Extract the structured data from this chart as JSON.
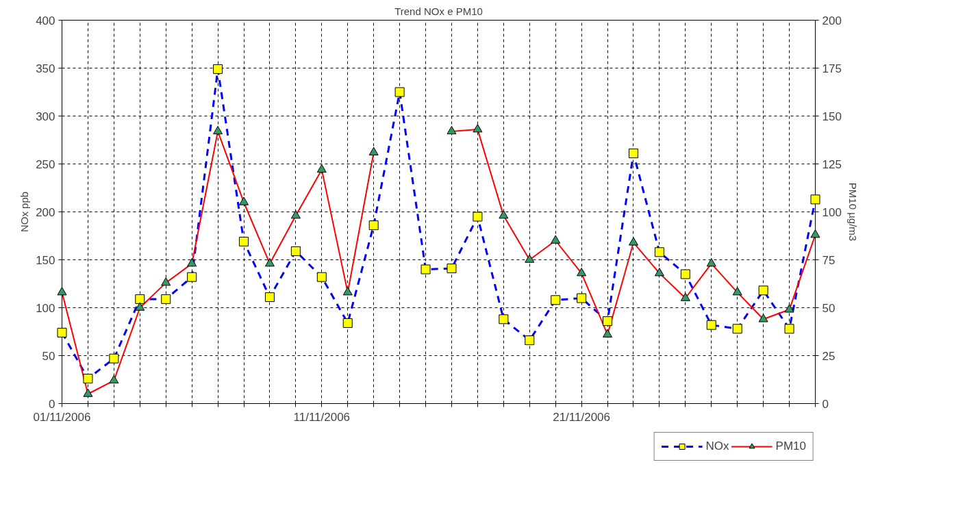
{
  "chart_data": {
    "type": "line",
    "title": "Trend NOx e PM10",
    "ylabel": "NOx ppb",
    "y2label": "PM10 µg/m3",
    "x": [
      "2006-11-01",
      "2006-11-02",
      "2006-11-03",
      "2006-11-04",
      "2006-11-05",
      "2006-11-06",
      "2006-11-07",
      "2006-11-08",
      "2006-11-09",
      "2006-11-10",
      "2006-11-11",
      "2006-11-12",
      "2006-11-13",
      "2006-11-14",
      "2006-11-15",
      "2006-11-16",
      "2006-11-17",
      "2006-11-18",
      "2006-11-19",
      "2006-11-20",
      "2006-11-21",
      "2006-11-22",
      "2006-11-23",
      "2006-11-24",
      "2006-11-25",
      "2006-11-26",
      "2006-11-27",
      "2006-11-28",
      "2006-11-29",
      "2006-11-30"
    ],
    "series": [
      {
        "name": "NOx",
        "color": "#0000ff",
        "colors": [
          "#ffff00",
          "#ffff00",
          "#ffff00",
          "#ffff00",
          "#ffff00",
          "#ffff00",
          "#ffff00",
          "#ffff00",
          "#ffff00",
          "#ffff00",
          "#ffff00",
          "#ffff00",
          "#ffff00",
          "#ffff00",
          "#ffff00",
          "#ffff00",
          "#ffff00",
          "#ffff00",
          "#ffff00",
          "#ffff00",
          "#ffff00",
          "#ffff00",
          "#ffff00",
          "#ffff00",
          "#ffff00",
          "#ffff00",
          "#ffff00",
          "#ffff00",
          "#ffff00",
          "#ffff00"
        ],
        "marker": "square",
        "line_style": "dashed",
        "values": [
          74,
          26,
          47,
          109,
          109,
          132,
          349,
          169,
          111,
          159,
          132,
          84,
          186,
          325,
          140,
          141,
          195,
          88,
          66,
          108,
          110,
          86,
          261,
          158,
          135,
          82,
          78,
          118,
          78,
          213
        ]
      },
      {
        "name": "PM10",
        "color": "#ff0000",
        "colors": [
          "#339966",
          "#339966",
          "#339966",
          "#339966",
          "#339966",
          "#339966",
          "#339966",
          "#339966",
          "#339966",
          "#339966",
          "#339966",
          "#339966",
          "#339966",
          "#339966",
          "#339966",
          "#339966",
          "#339966",
          "#339966",
          "#339966",
          "#339966",
          "#339966",
          "#339966",
          "#339966",
          "#339966",
          "#339966",
          "#339966",
          "#339966",
          "#339966",
          "#339966",
          "#339966"
        ],
        "marker": "triangle",
        "line_style": "solid",
        "axis": "y2",
        "values": [
          58,
          5,
          12,
          50,
          63,
          73,
          142,
          105,
          73,
          98,
          122,
          58,
          131,
          null,
          null,
          142,
          143,
          98,
          75,
          85,
          68,
          36,
          84,
          68,
          55,
          73,
          58,
          44,
          49,
          88
        ]
      }
    ],
    "xlim": [
      "2006-11-01",
      "2006-11-30"
    ],
    "xticks": [
      {
        "value": "2006-11-01",
        "label": "01/11/2006"
      },
      {
        "value": "2006-11-02",
        "label": null
      },
      {
        "value": "2006-11-03",
        "label": null
      },
      {
        "value": "2006-11-04",
        "label": null
      },
      {
        "value": "2006-11-05",
        "label": null
      },
      {
        "value": "2006-11-06",
        "label": null
      },
      {
        "value": "2006-11-07",
        "label": null
      },
      {
        "value": "2006-11-08",
        "label": null
      },
      {
        "value": "2006-11-09",
        "label": null
      },
      {
        "value": "2006-11-10",
        "label": null
      },
      {
        "value": "2006-11-11",
        "label": "11/11/2006"
      },
      {
        "value": "2006-11-12",
        "label": null
      },
      {
        "value": "2006-11-13",
        "label": null
      },
      {
        "value": "2006-11-14",
        "label": null
      },
      {
        "value": "2006-11-15",
        "label": null
      },
      {
        "value": "2006-11-16",
        "label": null
      },
      {
        "value": "2006-11-17",
        "label": null
      },
      {
        "value": "2006-11-18",
        "label": null
      },
      {
        "value": "2006-11-19",
        "label": null
      },
      {
        "value": "2006-11-20",
        "label": null
      },
      {
        "value": "2006-11-21",
        "label": "21/11/2006"
      },
      {
        "value": "2006-11-22",
        "label": null
      },
      {
        "value": "2006-11-23",
        "label": null
      },
      {
        "value": "2006-11-24",
        "label": null
      },
      {
        "value": "2006-11-25",
        "label": null
      },
      {
        "value": "2006-11-26",
        "label": null
      },
      {
        "value": "2006-11-27",
        "label": null
      },
      {
        "value": "2006-11-28",
        "label": null
      },
      {
        "value": "2006-11-29",
        "label": null
      },
      {
        "value": "2006-11-30",
        "label": null
      }
    ],
    "ylim": [
      0,
      400
    ],
    "yticks": [
      0,
      50,
      100,
      150,
      200,
      250,
      300,
      350,
      400
    ],
    "y2lim": [
      0,
      200
    ],
    "y2ticks": [
      0,
      25,
      50,
      75,
      100,
      125,
      150,
      175,
      200
    ],
    "grid": true,
    "legend": "bottom"
  }
}
